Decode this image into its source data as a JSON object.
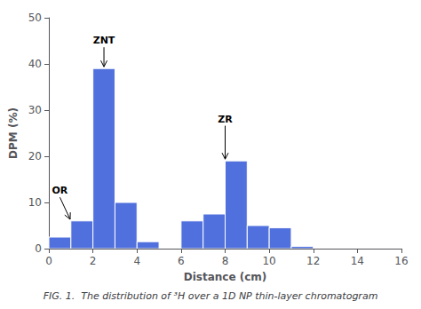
{
  "chart_data": {
    "type": "histogram",
    "bins": [
      0,
      1,
      2,
      3,
      4,
      5,
      6,
      7,
      8,
      9,
      10,
      11,
      12,
      13,
      14,
      15,
      16
    ],
    "values": [
      2.5,
      6.0,
      39.0,
      10.0,
      1.5,
      0.0,
      6.0,
      7.5,
      19.0,
      5.0,
      4.5,
      0.5,
      0.0,
      0.0,
      0.0,
      0.0
    ],
    "xlabel": "Distance (cm)",
    "ylabel": "DPM (%)",
    "xlim": [
      0,
      16
    ],
    "ylim": [
      0,
      50
    ],
    "xticks": [
      0,
      2,
      4,
      6,
      8,
      10,
      12,
      14,
      16
    ],
    "yticks": [
      0,
      10,
      20,
      30,
      40,
      50
    ],
    "grid": false,
    "annotations": [
      {
        "label": "ZNT",
        "x": 2.5,
        "y": 39.0,
        "text_x": 2.5,
        "text_y": 44.0
      },
      {
        "label": "ZR",
        "x": 8.0,
        "y": 19.0,
        "text_x": 8.0,
        "text_y": 27.0
      },
      {
        "label": "OR",
        "x": 1.0,
        "y": 6.0,
        "text_x": 0.5,
        "text_y": 11.5
      }
    ],
    "caption": "FIG. 1.  The distribution of ³H over a 1D NP thin-layer chromatogram"
  }
}
